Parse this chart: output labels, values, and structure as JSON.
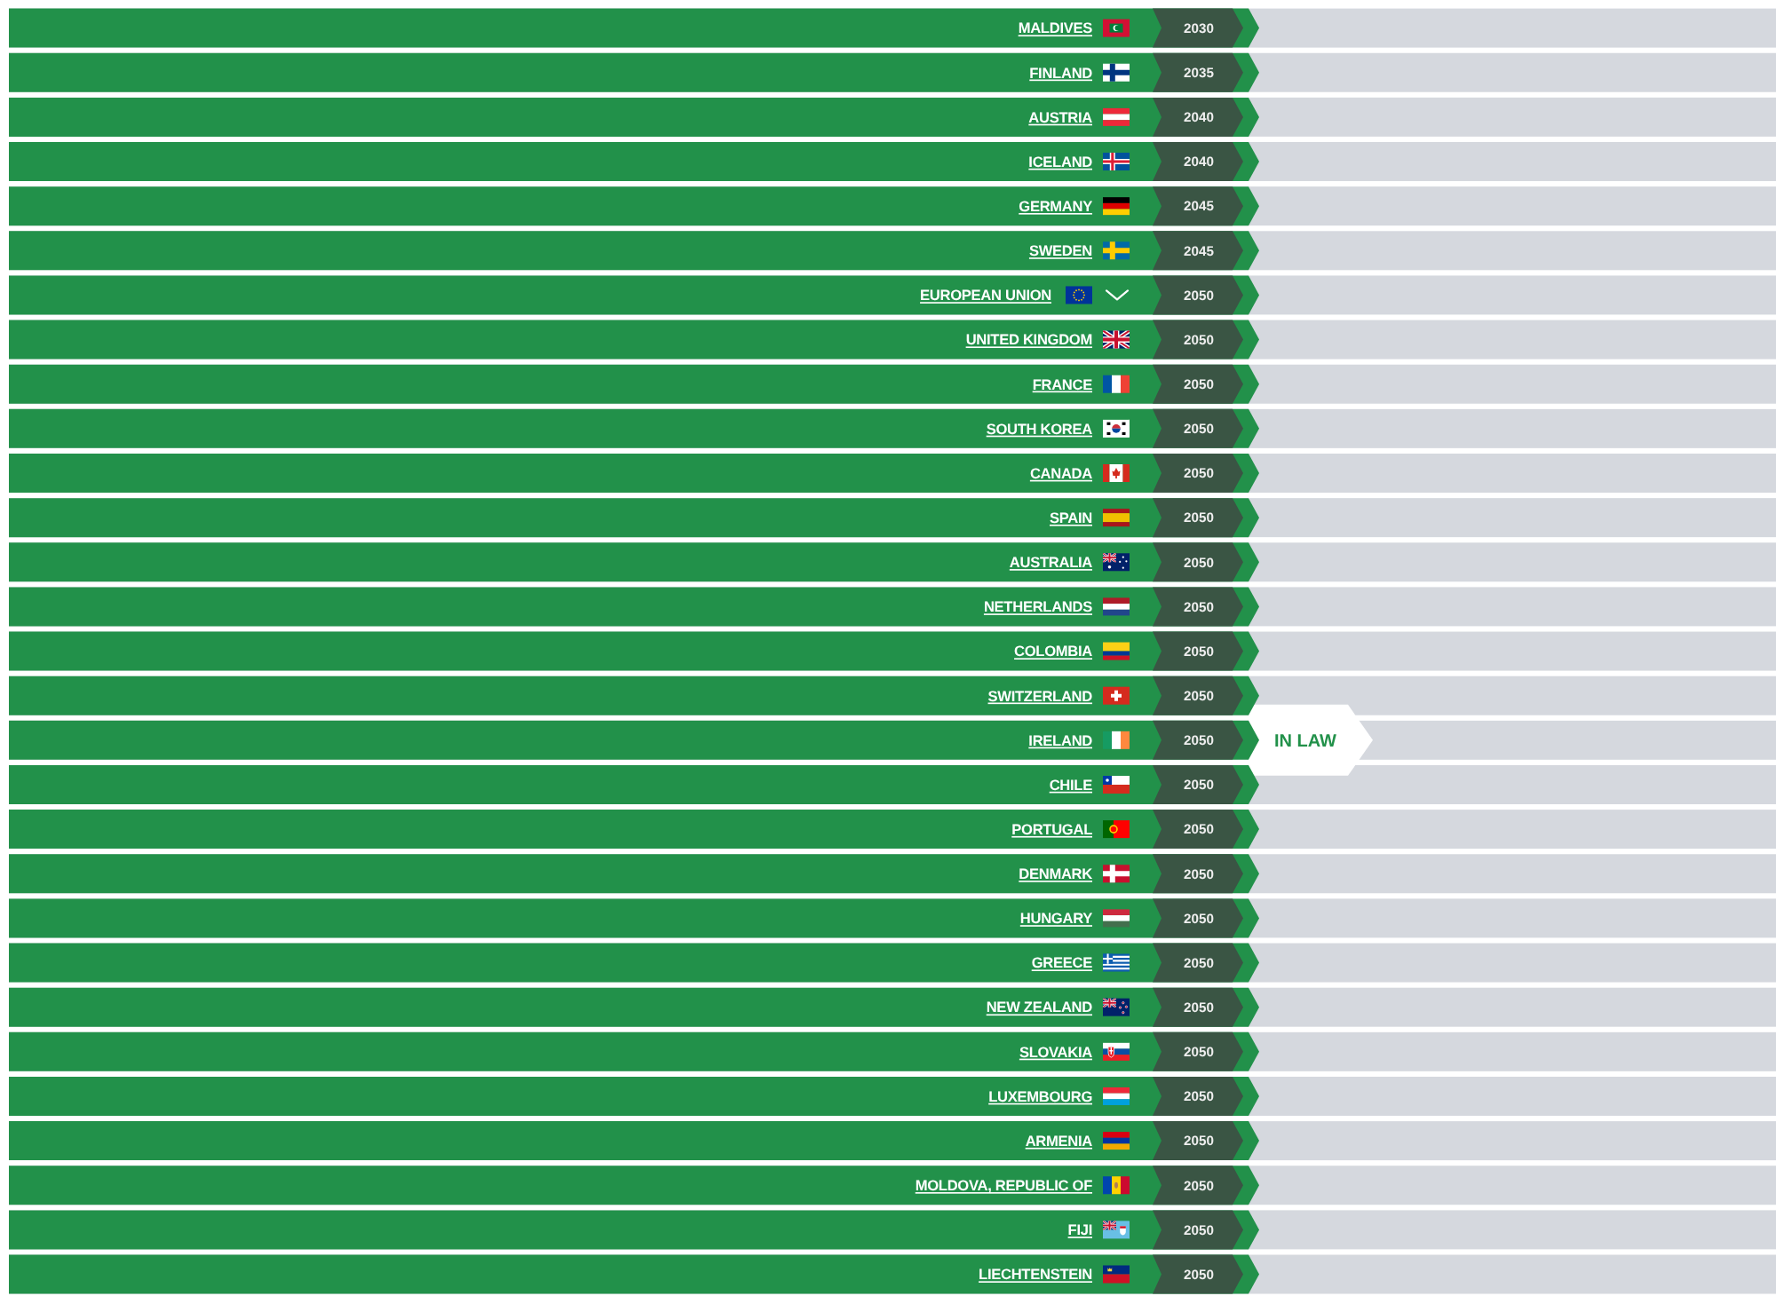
{
  "chart_data": {
    "type": "other",
    "color": "#3a5544",
    "categories": [
      "MALDIVES",
      "FINLAND",
      "AUSTRIA",
      "ICELAND",
      "GERMANY",
      "SWEDEN",
      "EUROPEAN UNION",
      "UNITED KINGDOM",
      "FRANCE",
      "SOUTH KOREA",
      "CANADA",
      "SPAIN",
      "AUSTRALIA",
      "NETHERLANDS",
      "COLOMBIA",
      "SWITZERLAND",
      "IRELAND",
      "CHILE",
      "PORTUGAL",
      "DENMARK",
      "HUNGARY",
      "GREECE",
      "NEW ZEALAND",
      "SLOVAKIA",
      "LUXEMBOURG",
      "ARMENIA",
      "MOLDOVA, REPUBLIC OF",
      "FIJI",
      "LIECHTENSTEIN"
    ],
    "values": [
      2030,
      2035,
      2040,
      2040,
      2045,
      2045,
      2050,
      2050,
      2050,
      2050,
      2050,
      2050,
      2050,
      2050,
      2050,
      2050,
      2050,
      2050,
      2050,
      2050,
      2050,
      2050,
      2050,
      2050,
      2050,
      2050,
      2050,
      2050,
      2050
    ],
    "data_labels": true,
    "annotations": [
      {
        "text": "IN LAW",
        "y": "IRELAND"
      }
    ]
  }
}
